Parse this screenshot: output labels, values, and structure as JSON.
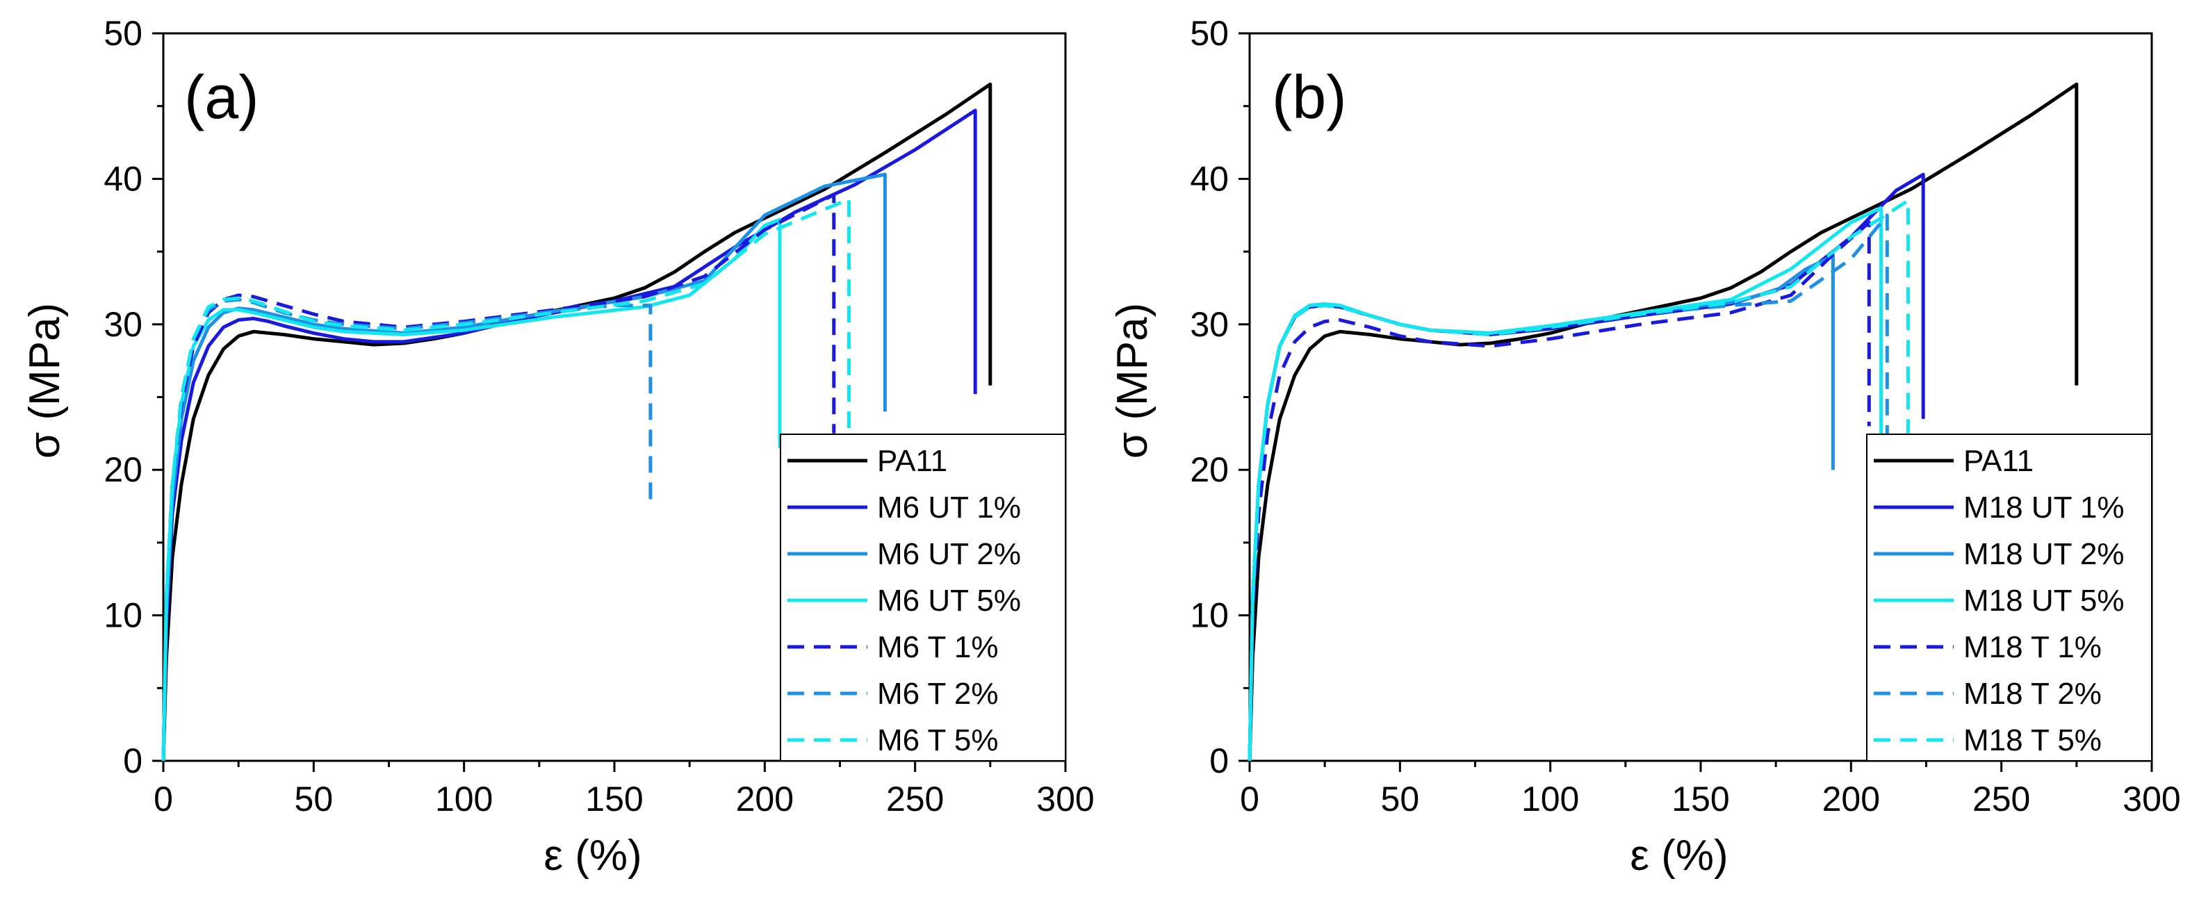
{
  "figure": {
    "panels": [
      {
        "label": "(a)",
        "xlabel": "ε (%)",
        "ylabel": "σ (MPa)"
      },
      {
        "label": "(b)",
        "xlabel": "ε (%)",
        "ylabel": "σ (MPa)"
      }
    ]
  },
  "chart_data": [
    {
      "type": "line",
      "title": "(a)",
      "xlabel": "ε (%)",
      "ylabel": "σ (MPa)",
      "xlim": [
        0,
        300
      ],
      "ylim": [
        0,
        50
      ],
      "xticks": [
        0,
        50,
        100,
        150,
        200,
        250,
        300
      ],
      "yticks": [
        0,
        10,
        20,
        30,
        40,
        50
      ],
      "legend": "bottom-right",
      "series": [
        {
          "name": "PA11",
          "color": "#000000",
          "dash": "solid",
          "x": [
            0,
            1,
            3,
            6,
            10,
            15,
            20,
            25,
            30,
            40,
            50,
            60,
            70,
            80,
            90,
            100,
            120,
            150,
            160,
            170,
            180,
            190,
            200,
            220,
            240,
            260,
            275,
            275
          ],
          "y": [
            0,
            7,
            14,
            19,
            23.5,
            26.5,
            28.3,
            29.2,
            29.5,
            29.3,
            29.0,
            28.8,
            28.6,
            28.7,
            29.0,
            29.4,
            30.5,
            31.8,
            32.5,
            33.6,
            35.0,
            36.3,
            37.3,
            39.3,
            41.8,
            44.4,
            46.5,
            25.8
          ]
        },
        {
          "name": "M6 UT 1%",
          "color": "#1a1adc",
          "dash": "solid",
          "x": [
            0,
            1,
            3,
            6,
            10,
            15,
            20,
            25,
            30,
            35,
            40,
            50,
            60,
            70,
            80,
            100,
            120,
            150,
            170,
            190,
            210,
            230,
            250,
            270,
            270
          ],
          "y": [
            0,
            9,
            17,
            22,
            26,
            28.5,
            29.8,
            30.3,
            30.4,
            30.2,
            29.9,
            29.4,
            29.0,
            28.8,
            28.8,
            29.4,
            30.4,
            31.6,
            32.6,
            35.3,
            37.7,
            39.6,
            42.0,
            44.7,
            25.2
          ]
        },
        {
          "name": "M6 UT 2%",
          "color": "#1e90e6",
          "dash": "solid",
          "x": [
            0,
            1,
            3,
            6,
            10,
            15,
            20,
            25,
            30,
            40,
            50,
            60,
            80,
            100,
            130,
            160,
            180,
            200,
            220,
            240,
            240
          ],
          "y": [
            0,
            10,
            18,
            23.5,
            27.5,
            29.8,
            30.8,
            31.1,
            31.0,
            30.5,
            30.0,
            29.7,
            29.4,
            29.8,
            30.9,
            31.9,
            33.0,
            37.5,
            39.5,
            40.3,
            24.0
          ]
        },
        {
          "name": "M6 UT 5%",
          "color": "#14e6f0",
          "dash": "solid",
          "x": [
            0,
            1,
            3,
            6,
            10,
            15,
            20,
            25,
            30,
            40,
            50,
            60,
            80,
            100,
            130,
            160,
            175,
            190,
            200,
            205,
            205
          ],
          "y": [
            0,
            11,
            19,
            24.5,
            28.5,
            30.3,
            31.0,
            31.0,
            30.8,
            30.3,
            29.8,
            29.5,
            29.3,
            29.6,
            30.5,
            31.2,
            32.0,
            34.5,
            36.8,
            37.2,
            21.5
          ]
        },
        {
          "name": "M6 T 1%",
          "color": "#1a1adc",
          "dash": "dashed",
          "x": [
            0,
            1,
            3,
            6,
            10,
            15,
            20,
            25,
            30,
            40,
            50,
            60,
            80,
            100,
            130,
            160,
            180,
            200,
            223,
            223
          ],
          "y": [
            0,
            11,
            19,
            24.5,
            28.5,
            30.8,
            31.7,
            32.0,
            31.9,
            31.3,
            30.7,
            30.2,
            29.8,
            30.2,
            31.0,
            31.9,
            33.3,
            36.5,
            38.9,
            22.5
          ]
        },
        {
          "name": "M6 T 2%",
          "color": "#1e90e6",
          "dash": "dashed",
          "x": [
            0,
            1,
            3,
            6,
            10,
            15,
            20,
            25,
            30,
            40,
            50,
            60,
            80,
            100,
            130,
            150,
            162,
            162
          ],
          "y": [
            0,
            11,
            19,
            25,
            29,
            31.0,
            31.6,
            31.7,
            31.5,
            30.8,
            30.3,
            30.0,
            29.7,
            30.1,
            30.9,
            31.3,
            31.3,
            17.8
          ]
        },
        {
          "name": "M6 T 5%",
          "color": "#14e6f0",
          "dash": "dashed",
          "x": [
            0,
            1,
            3,
            6,
            10,
            15,
            20,
            25,
            30,
            40,
            50,
            60,
            80,
            100,
            130,
            160,
            180,
            200,
            228,
            228
          ],
          "y": [
            0,
            11,
            19,
            25,
            29,
            31.2,
            31.7,
            31.8,
            31.6,
            30.9,
            30.2,
            29.9,
            29.6,
            30.0,
            30.8,
            31.6,
            32.8,
            36.2,
            38.6,
            22.0
          ]
        }
      ]
    },
    {
      "type": "line",
      "title": "(b)",
      "xlabel": "ε (%)",
      "ylabel": "σ (MPa)",
      "xlim": [
        0,
        300
      ],
      "ylim": [
        0,
        50
      ],
      "xticks": [
        0,
        50,
        100,
        150,
        200,
        250,
        300
      ],
      "yticks": [
        0,
        10,
        20,
        30,
        40,
        50
      ],
      "legend": "bottom-right",
      "series": [
        {
          "name": "PA11",
          "color": "#000000",
          "dash": "solid",
          "x": [
            0,
            1,
            3,
            6,
            10,
            15,
            20,
            25,
            30,
            40,
            50,
            60,
            70,
            80,
            90,
            100,
            120,
            150,
            160,
            170,
            180,
            190,
            200,
            220,
            240,
            260,
            275,
            275
          ],
          "y": [
            0,
            7,
            14,
            19,
            23.5,
            26.5,
            28.3,
            29.2,
            29.5,
            29.3,
            29.0,
            28.8,
            28.6,
            28.7,
            29.0,
            29.4,
            30.5,
            31.8,
            32.5,
            33.6,
            35.0,
            36.3,
            37.3,
            39.3,
            41.8,
            44.4,
            46.5,
            25.8
          ]
        },
        {
          "name": "M18 UT 1%",
          "color": "#1a1adc",
          "dash": "solid",
          "x": [
            0,
            1,
            3,
            6,
            10,
            15,
            20,
            25,
            30,
            40,
            50,
            60,
            80,
            100,
            130,
            160,
            180,
            200,
            215,
            224,
            224
          ],
          "y": [
            0,
            11,
            19,
            24.5,
            28.5,
            30.5,
            31.2,
            31.3,
            31.2,
            30.6,
            30.0,
            29.6,
            29.3,
            29.7,
            30.6,
            31.4,
            32.7,
            36.0,
            39.2,
            40.3,
            23.5
          ]
        },
        {
          "name": "M18 UT 2%",
          "color": "#1e90e6",
          "dash": "solid",
          "x": [
            0,
            1,
            3,
            6,
            10,
            15,
            20,
            25,
            30,
            40,
            50,
            60,
            80,
            100,
            130,
            160,
            175,
            185,
            193,
            194,
            194
          ],
          "y": [
            0,
            11,
            19,
            24.5,
            28.5,
            30.6,
            31.3,
            31.4,
            31.3,
            30.6,
            30.0,
            29.6,
            29.4,
            29.9,
            30.8,
            31.5,
            32.3,
            33.8,
            34.6,
            34.8,
            20.0
          ]
        },
        {
          "name": "M18 UT 5%",
          "color": "#14e6f0",
          "dash": "solid",
          "x": [
            0,
            1,
            3,
            6,
            10,
            15,
            20,
            25,
            30,
            40,
            50,
            60,
            80,
            100,
            130,
            160,
            180,
            200,
            210,
            210
          ],
          "y": [
            0,
            11,
            19,
            24.5,
            28.5,
            30.6,
            31.3,
            31.4,
            31.3,
            30.6,
            30.0,
            29.6,
            29.4,
            29.9,
            30.8,
            31.7,
            33.8,
            37.0,
            38.0,
            20.5
          ]
        },
        {
          "name": "M18 T 1%",
          "color": "#1a1adc",
          "dash": "dashed",
          "x": [
            0,
            1,
            3,
            6,
            10,
            15,
            20,
            25,
            30,
            40,
            50,
            60,
            80,
            100,
            130,
            160,
            180,
            195,
            206,
            206
          ],
          "y": [
            0,
            10,
            17,
            22.5,
            26.5,
            28.8,
            29.8,
            30.2,
            30.3,
            29.8,
            29.2,
            28.8,
            28.5,
            29.0,
            30.0,
            30.8,
            32.0,
            35.0,
            37.0,
            23.0
          ]
        },
        {
          "name": "M18 T 2%",
          "color": "#1e90e6",
          "dash": "dashed",
          "x": [
            0,
            1,
            3,
            6,
            10,
            15,
            20,
            25,
            30,
            40,
            50,
            60,
            80,
            100,
            130,
            160,
            180,
            200,
            212,
            212
          ],
          "y": [
            0,
            11,
            19,
            24.5,
            28.5,
            30.5,
            31.2,
            31.3,
            31.2,
            30.6,
            30.0,
            29.6,
            29.3,
            29.8,
            30.7,
            31.3,
            31.6,
            34.5,
            37.5,
            22.0
          ]
        },
        {
          "name": "M18 T 5%",
          "color": "#14e6f0",
          "dash": "dashed",
          "x": [
            0,
            1,
            3,
            6,
            10,
            15,
            20,
            25,
            30,
            40,
            50,
            60,
            80,
            100,
            130,
            160,
            180,
            200,
            219,
            219
          ],
          "y": [
            0,
            11,
            19,
            24.5,
            28.5,
            30.5,
            31.2,
            31.3,
            31.2,
            30.6,
            30.0,
            29.6,
            29.3,
            29.8,
            30.7,
            31.5,
            32.6,
            36.0,
            38.5,
            22.5
          ]
        }
      ]
    }
  ]
}
